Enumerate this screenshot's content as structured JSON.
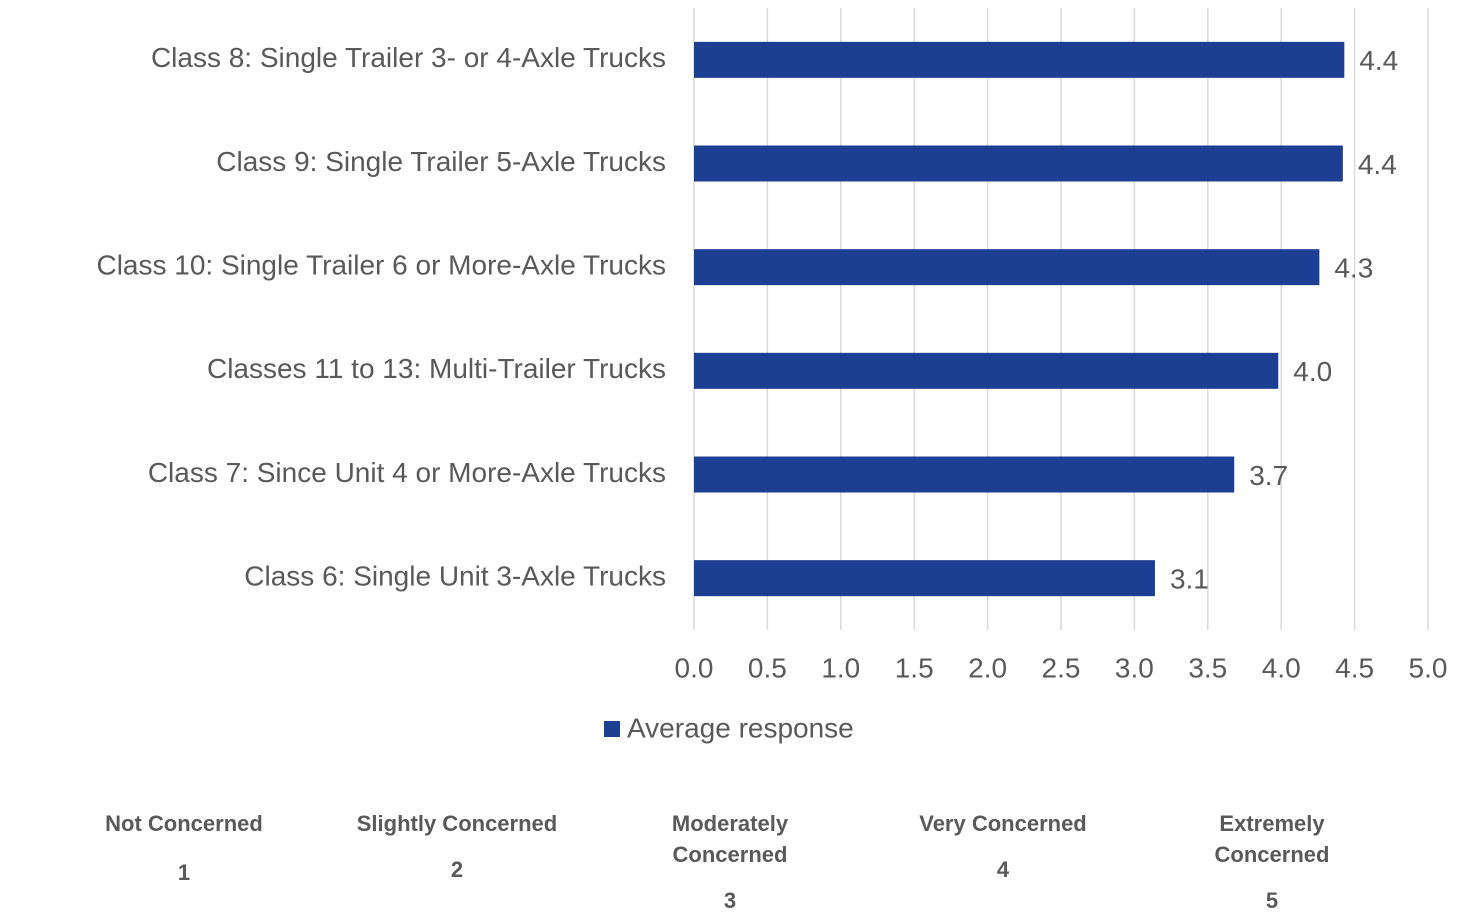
{
  "chart_data": {
    "type": "barh",
    "categories": [
      "Class 8: Single Trailer 3- or 4-Axle Trucks",
      "Class 9: Single Trailer 5-Axle Trucks",
      "Class 10: Single Trailer 6 or More-Axle Trucks",
      "Classes 11 to 13: Multi-Trailer Trucks",
      "Class 7: Since Unit 4 or More-Axle Trucks",
      "Class 6: Single Unit 3-Axle Trucks"
    ],
    "series": [
      {
        "name": "Average response",
        "color": "#1c3f94",
        "values": [
          4.43,
          4.42,
          4.26,
          3.98,
          3.68,
          3.14
        ],
        "value_labels": [
          "4.4",
          "4.4",
          "4.3",
          "4.0",
          "3.7",
          "3.1"
        ]
      }
    ],
    "xlim": [
      0,
      5
    ],
    "xticks": [
      {
        "value": 0,
        "label": "0.0"
      },
      {
        "value": 0.5,
        "label": "0.5"
      },
      {
        "value": 1,
        "label": "1.0"
      },
      {
        "value": 1.5,
        "label": "1.5"
      },
      {
        "value": 2,
        "label": "2.0"
      },
      {
        "value": 2.5,
        "label": "2.5"
      },
      {
        "value": 3,
        "label": "3.0"
      },
      {
        "value": 3.5,
        "label": "3.5"
      },
      {
        "value": 4,
        "label": "4.0"
      },
      {
        "value": 4.5,
        "label": "4.5"
      },
      {
        "value": 5,
        "label": "5.0"
      }
    ],
    "grid": true,
    "legend": "bottom",
    "scale_legend": [
      {
        "label": "Not Concerned",
        "value": 1
      },
      {
        "label": "Slightly Concerned",
        "value": 2
      },
      {
        "label": "Moderately Concerned",
        "value": 3
      },
      {
        "label": "Very Concerned",
        "value": 4
      },
      {
        "label": "Extremely Concerned",
        "value": 5
      }
    ]
  }
}
